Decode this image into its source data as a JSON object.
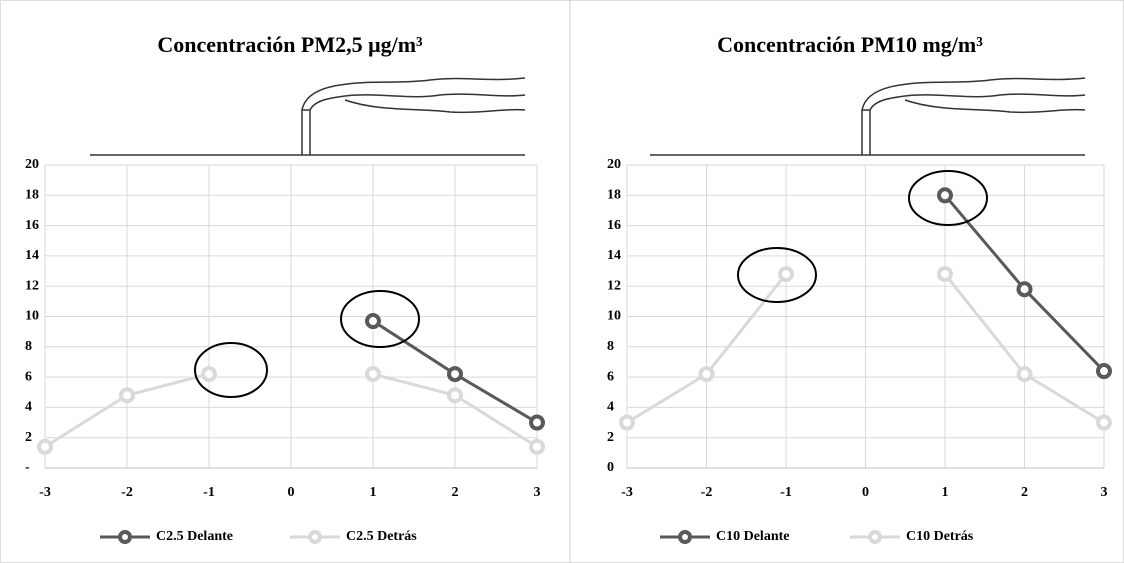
{
  "chart_data": [
    {
      "type": "line",
      "title": "Concentración PM2,5 μg/m³",
      "x": [
        -3,
        -2,
        -1,
        0,
        1,
        2,
        3
      ],
      "series": [
        {
          "name": "C2.5 Delante",
          "color": "#595959",
          "values": [
            null,
            null,
            null,
            null,
            9.7,
            6.2,
            3.0
          ]
        },
        {
          "name": "C2.5 Detrás",
          "color": "#d9d9d9",
          "values": [
            1.4,
            4.8,
            6.2,
            null,
            6.2,
            4.8,
            1.4
          ]
        }
      ],
      "xlim": [
        -3,
        3
      ],
      "xticks": [
        -3,
        -2,
        -1,
        0,
        1,
        2,
        3
      ],
      "ylim": [
        0,
        20
      ],
      "yticks": [
        {
          "value": 0,
          "label": "-"
        },
        2,
        4,
        6,
        8,
        10,
        12,
        14,
        16,
        18,
        20
      ],
      "grid": true,
      "legend": "bottom"
    },
    {
      "type": "line",
      "title": "Concentración PM10 mg/m³",
      "x": [
        -3,
        -2,
        -1,
        0,
        1,
        2,
        3
      ],
      "series": [
        {
          "name": "C10 Delante",
          "color": "#595959",
          "values": [
            null,
            null,
            null,
            null,
            18,
            11.8,
            6.4
          ]
        },
        {
          "name": "C10 Detrás",
          "color": "#d9d9d9",
          "values": [
            3,
            6.2,
            12.8,
            null,
            12.8,
            6.2,
            3
          ]
        }
      ],
      "xlim": [
        -3,
        3
      ],
      "xticks": [
        -3,
        -2,
        -1,
        0,
        1,
        2,
        3
      ],
      "ylim": [
        0,
        20
      ],
      "yticks": [
        0,
        2,
        4,
        6,
        8,
        10,
        12,
        14,
        16,
        18,
        20
      ],
      "grid": true,
      "legend": "bottom"
    }
  ]
}
